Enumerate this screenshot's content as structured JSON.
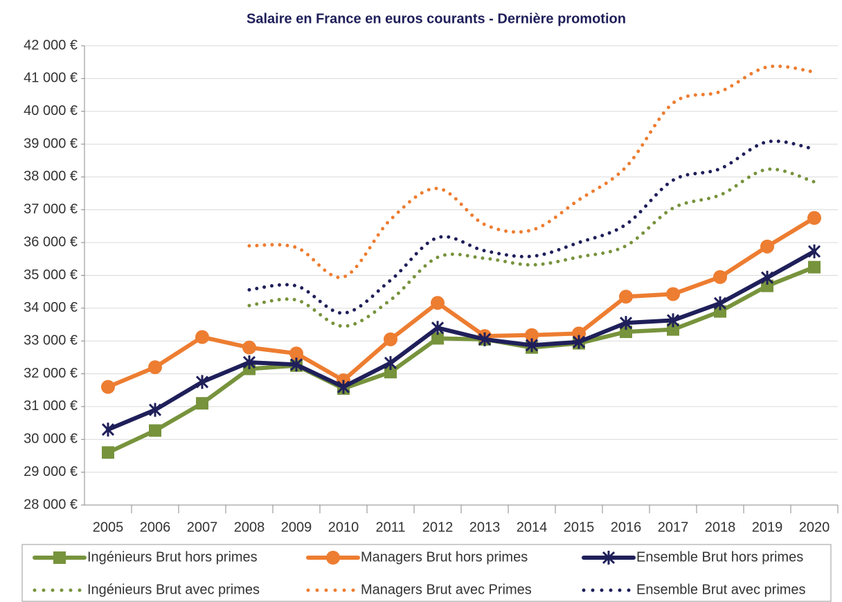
{
  "chart_data": {
    "type": "line",
    "title": "Salaire en France en euros courants - Dernière promotion",
    "categories": [
      "2005",
      "2006",
      "2007",
      "2008",
      "2009",
      "2010",
      "2011",
      "2012",
      "2013",
      "2014",
      "2015",
      "2016",
      "2017",
      "2018",
      "2019",
      "2020"
    ],
    "ylim": [
      28000,
      42000
    ],
    "yticks": [
      {
        "value": 28000,
        "label": "28 000 €"
      },
      {
        "value": 29000,
        "label": "29 000 €"
      },
      {
        "value": 30000,
        "label": "30 000 €"
      },
      {
        "value": 31000,
        "label": "31 000 €"
      },
      {
        "value": 32000,
        "label": "32 000 €"
      },
      {
        "value": 33000,
        "label": "33 000 €"
      },
      {
        "value": 34000,
        "label": "34 000 €"
      },
      {
        "value": 35000,
        "label": "35 000 €"
      },
      {
        "value": 36000,
        "label": "36 000 €"
      },
      {
        "value": 37000,
        "label": "37 000 €"
      },
      {
        "value": 38000,
        "label": "38 000 €"
      },
      {
        "value": 39000,
        "label": "39 000 €"
      },
      {
        "value": 40000,
        "label": "40 000 €"
      },
      {
        "value": 41000,
        "label": "41 000 €"
      },
      {
        "value": 42000,
        "label": "42 000 €"
      }
    ],
    "grid": true,
    "legend": "bottom",
    "series": [
      {
        "name": "Ingénieurs Brut hors primes",
        "color": "#77933c",
        "marker": "square",
        "dotted": false,
        "values": [
          29600,
          30270,
          31100,
          32150,
          32250,
          31550,
          32050,
          33080,
          33050,
          32800,
          32930,
          33280,
          33350,
          33900,
          34680,
          35250
        ]
      },
      {
        "name": "Managers Brut hors primes",
        "color": "#ed7d31",
        "marker": "circle",
        "dotted": false,
        "values": [
          31600,
          32200,
          33120,
          32800,
          32620,
          31800,
          33050,
          34160,
          33150,
          33180,
          33230,
          34350,
          34430,
          34950,
          35880,
          36750
        ]
      },
      {
        "name": "Ensemble Brut hors primes",
        "color": "#1f1f5a",
        "marker": "star",
        "dotted": false,
        "values": [
          30300,
          30900,
          31750,
          32350,
          32280,
          31600,
          32330,
          33400,
          33050,
          32870,
          32970,
          33550,
          33630,
          34150,
          34930,
          35730
        ]
      },
      {
        "name": "Ingénieurs Brut avec primes",
        "color": "#77933c",
        "marker": null,
        "dotted": true,
        "values": [
          null,
          null,
          null,
          34080,
          34250,
          33450,
          34250,
          35550,
          35520,
          35320,
          35560,
          35900,
          37050,
          37450,
          38230,
          37850
        ]
      },
      {
        "name": "Managers Brut avec Primes",
        "color": "#ed7d31",
        "marker": null,
        "dotted": true,
        "values": [
          null,
          null,
          null,
          35900,
          35850,
          34950,
          36700,
          37650,
          36550,
          36380,
          37300,
          38300,
          40250,
          40600,
          41350,
          41200
        ]
      },
      {
        "name": "Ensemble Brut avec primes",
        "color": "#1f1f5a",
        "marker": null,
        "dotted": true,
        "values": [
          null,
          null,
          null,
          34560,
          34680,
          33850,
          34850,
          36150,
          35750,
          35580,
          36000,
          36550,
          37900,
          38250,
          39070,
          38850
        ]
      }
    ]
  }
}
